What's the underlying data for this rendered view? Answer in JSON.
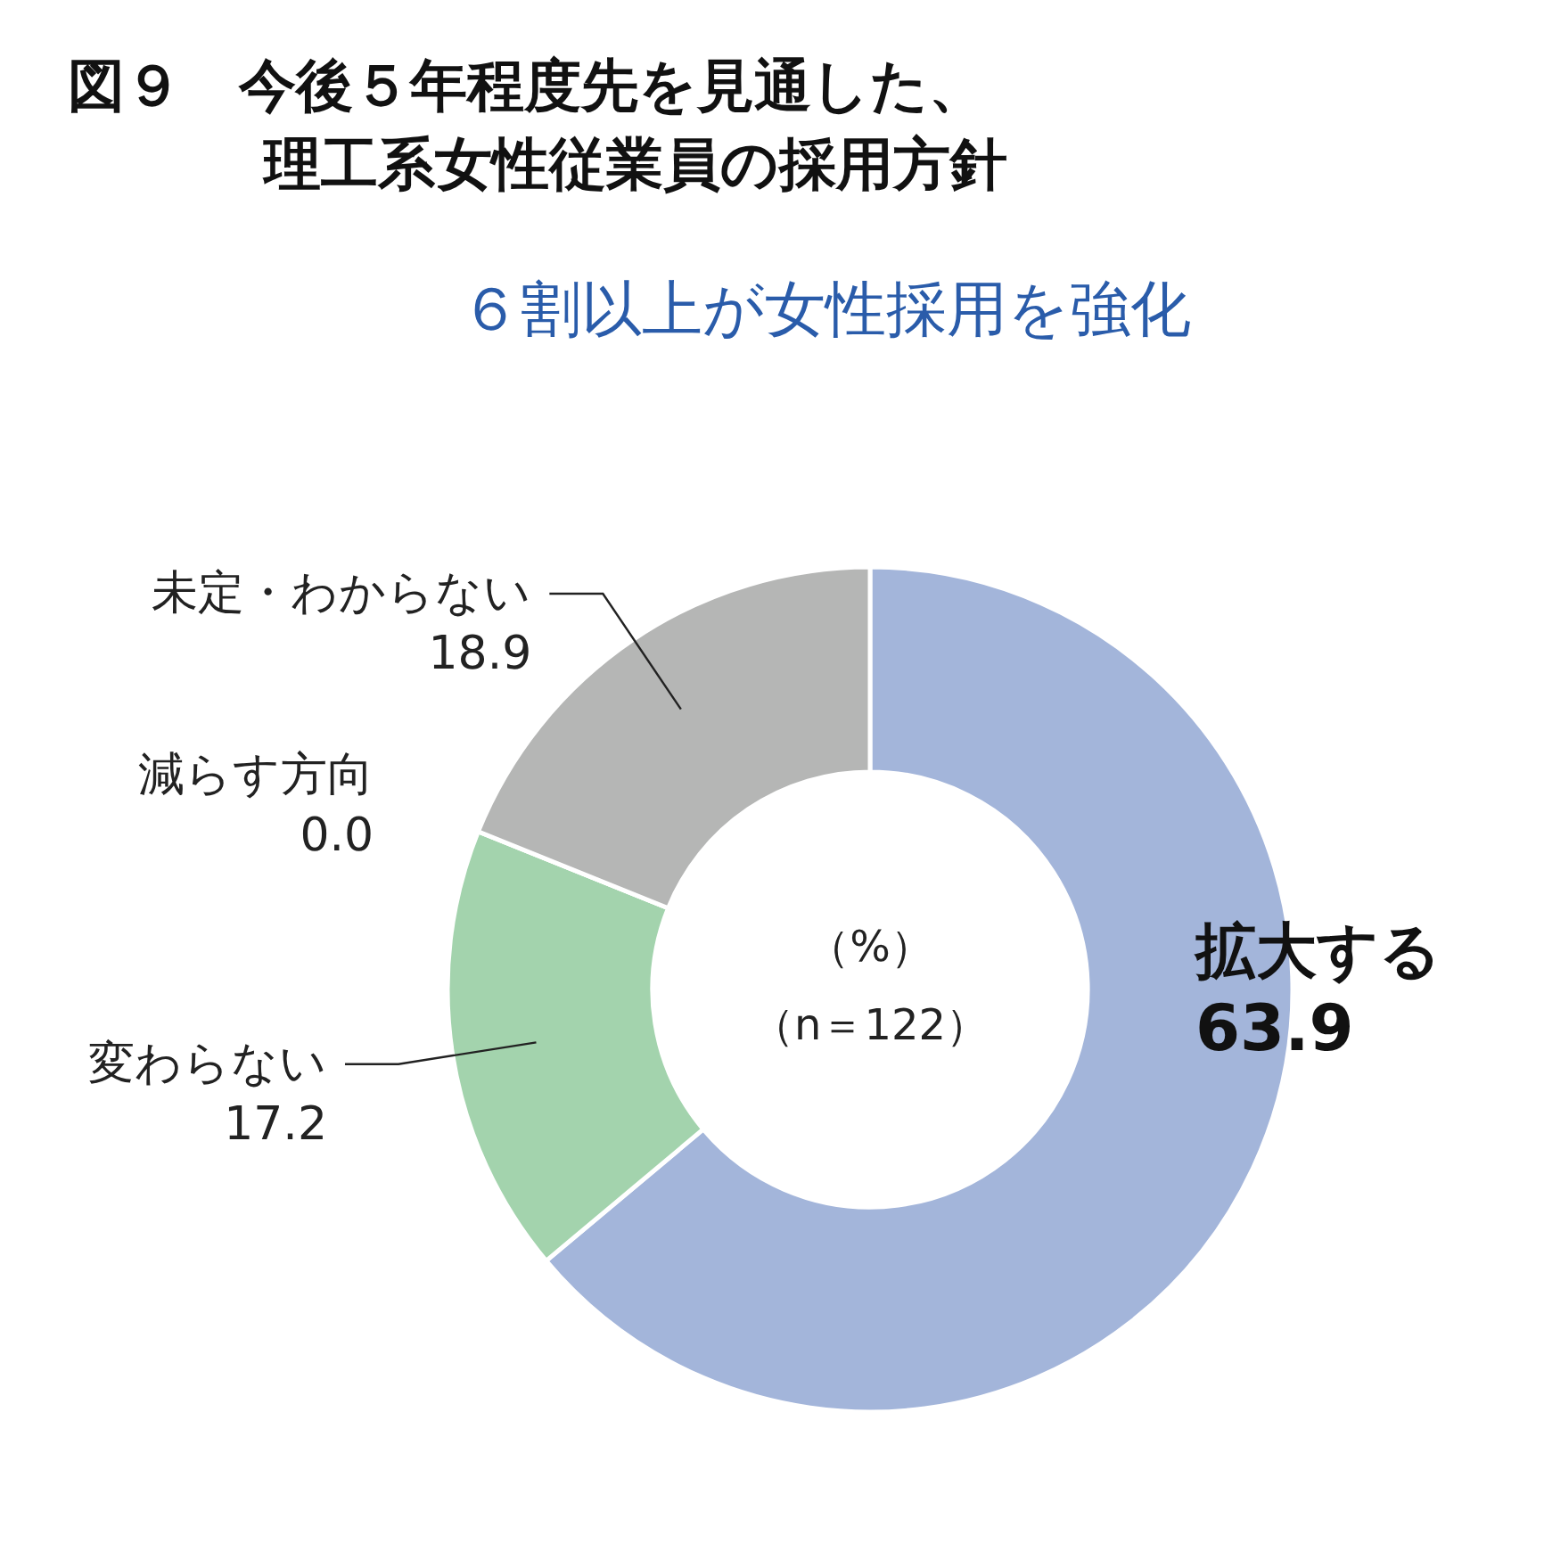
{
  "chart_data": {
    "type": "donut",
    "title": "図９　今後５年程度先を見通した、理工系女性従業員の採用方針",
    "subtitle": "６割以上が女性採用を強化",
    "categories": [
      "拡大する",
      "変わらない",
      "減らす方向",
      "未定・わからない"
    ],
    "values": [
      63.9,
      17.2,
      0.0,
      18.9
    ],
    "colors": [
      "#a3b5da",
      "#a3d3ad",
      "#c9c9c9",
      "#b5b6b5"
    ],
    "value_labels": [
      "63.9",
      "17.2",
      "0.0",
      "18.9"
    ],
    "annotations": [
      "（%）",
      "（n＝122）"
    ]
  }
}
